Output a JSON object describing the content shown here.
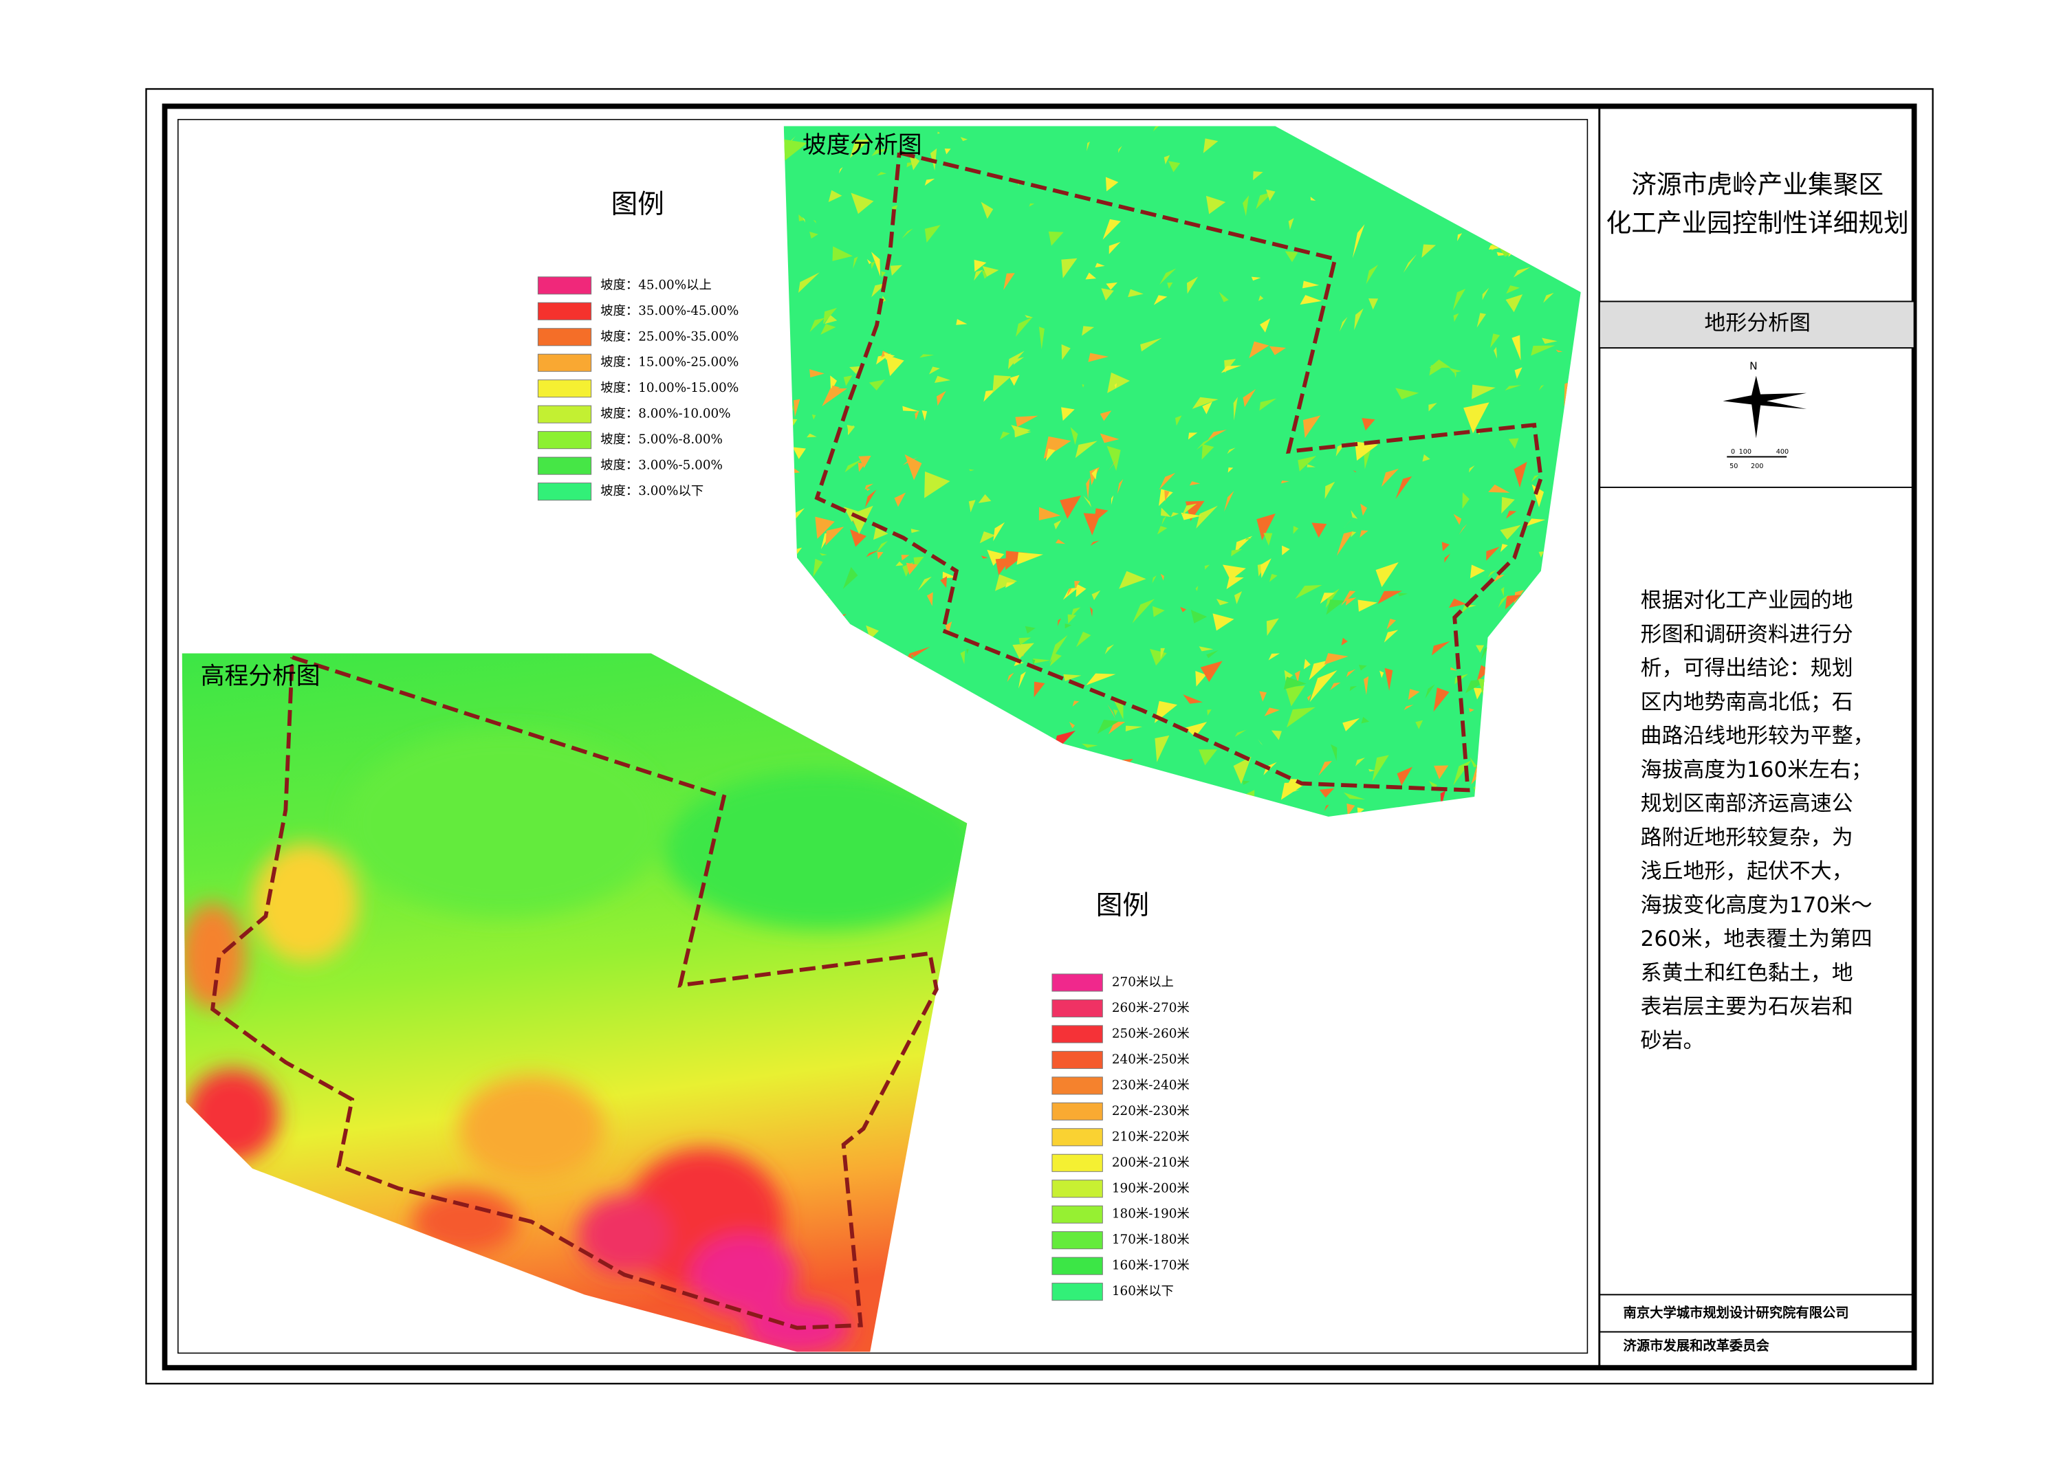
{
  "title_block": {
    "title_lines": [
      "济源市虎岭产业集聚区",
      "化工产业园控制性详细规划"
    ],
    "drawing_name": "地形分析图"
  },
  "north_arrow": {
    "north": "N",
    "scale_top": [
      "0",
      "100",
      "400"
    ],
    "scale_bottom": [
      "50",
      "200"
    ]
  },
  "slope_map": {
    "title": "坡度分析图",
    "legend_title": "图例",
    "legend": [
      {
        "label": "坡度：45.00%以上",
        "color": "#f0287a"
      },
      {
        "label": "坡度：35.00%-45.00%",
        "color": "#f5322d"
      },
      {
        "label": "坡度：25.00%-35.00%",
        "color": "#f56e28"
      },
      {
        "label": "坡度：15.00%-25.00%",
        "color": "#f9a832"
      },
      {
        "label": "坡度：10.00%-15.00%",
        "color": "#f5f032"
      },
      {
        "label": "坡度：8.00%-10.00%",
        "color": "#c3f032"
      },
      {
        "label": "坡度：5.00%-8.00%",
        "color": "#8cf032"
      },
      {
        "label": "坡度：3.00%-5.00%",
        "color": "#46e646"
      },
      {
        "label": "坡度：3.00%以下",
        "color": "#32f078"
      }
    ]
  },
  "elevation_map": {
    "title": "高程分析图",
    "legend_title": "图例",
    "legend": [
      {
        "label": "270米以上",
        "color": "#f0288c"
      },
      {
        "label": "260米-270米",
        "color": "#f03264"
      },
      {
        "label": "250米-260米",
        "color": "#f53237"
      },
      {
        "label": "240米-250米",
        "color": "#f55a2d"
      },
      {
        "label": "230米-240米",
        "color": "#f5822d"
      },
      {
        "label": "220米-230米",
        "color": "#f9aa32"
      },
      {
        "label": "210米-220米",
        "color": "#fad232"
      },
      {
        "label": "200米-210米",
        "color": "#f5f032"
      },
      {
        "label": "190米-200米",
        "color": "#c8f032"
      },
      {
        "label": "180米-190米",
        "color": "#96f032"
      },
      {
        "label": "170米-180米",
        "color": "#64eb3c"
      },
      {
        "label": "160米-170米",
        "color": "#3ce646"
      },
      {
        "label": "160米以下",
        "color": "#32f078"
      }
    ]
  },
  "description": {
    "lines": [
      "根据对化工产业园的地",
      "形图和调研资料进行分",
      "析，可得出结论：规划",
      "区内地势南高北低；石",
      "曲路沿线地形较为平整，",
      "海拔高度为160米左右；",
      "规划区南部济运高速公",
      "路附近地形较复杂，为",
      "浅丘地形，起伏不大，",
      "海拔变化高度为170米～",
      "260米，地表覆土为第四",
      "系黄土和红色黏土，地",
      "表岩层主要为石灰岩和",
      "砂岩。"
    ]
  },
  "footer": {
    "designer": "南京大学城市规划设计研究院有限公司",
    "client": "济源市发展和改革委员会"
  }
}
